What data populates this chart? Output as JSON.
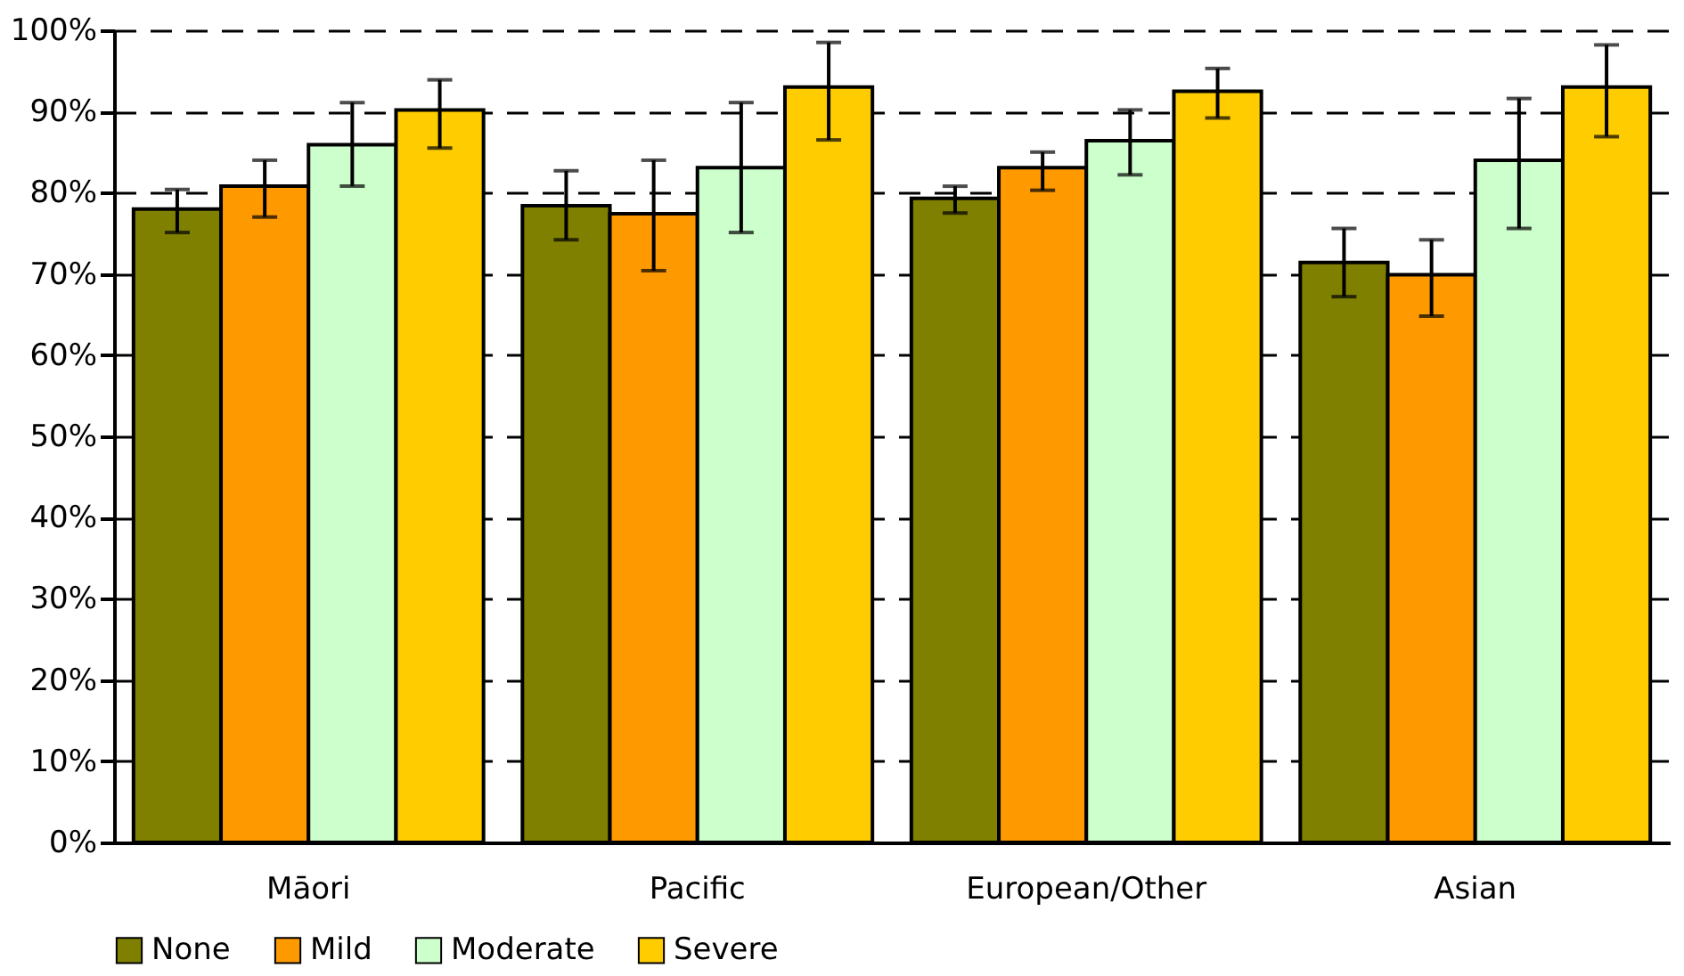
{
  "chart_data": {
    "type": "bar",
    "categories": [
      "Māori",
      "Pacific",
      "European/Other",
      "Asian"
    ],
    "series": [
      {
        "name": "None",
        "color": "#808000",
        "values": [
          78.0,
          78.4,
          79.3,
          71.4
        ],
        "errors": [
          [
            75.1,
            80.4
          ],
          [
            74.2,
            82.7
          ],
          [
            77.5,
            80.8
          ],
          [
            67.2,
            75.6
          ]
        ]
      },
      {
        "name": "Mild",
        "color": "#ff9900",
        "values": [
          80.8,
          77.4,
          83.1,
          69.9
        ],
        "errors": [
          [
            77.0,
            84.0
          ],
          [
            70.4,
            84.0
          ],
          [
            80.3,
            85.0
          ],
          [
            64.8,
            74.2
          ]
        ]
      },
      {
        "name": "Moderate",
        "color": "#ccffcc",
        "values": [
          85.9,
          83.1,
          86.4,
          84.0
        ],
        "errors": [
          [
            80.8,
            91.1
          ],
          [
            75.1,
            91.1
          ],
          [
            82.2,
            90.2
          ],
          [
            75.6,
            91.6
          ]
        ]
      },
      {
        "name": "Severe",
        "color": "#ffcc00",
        "values": [
          90.2,
          93.0,
          92.5,
          93.0
        ],
        "errors": [
          [
            85.5,
            93.9
          ],
          [
            86.5,
            98.5
          ],
          [
            89.2,
            95.3
          ],
          [
            86.9,
            98.2
          ]
        ]
      }
    ],
    "ylim": [
      0,
      100
    ],
    "yticks": [
      {
        "value": 0,
        "label": "0%"
      },
      {
        "value": 10,
        "label": "10%"
      },
      {
        "value": 20,
        "label": "20%"
      },
      {
        "value": 30,
        "label": "30%"
      },
      {
        "value": 40,
        "label": "40%"
      },
      {
        "value": 50,
        "label": "50%"
      },
      {
        "value": 60,
        "label": "60%"
      },
      {
        "value": 70,
        "label": "70%"
      },
      {
        "value": 80,
        "label": "80%"
      },
      {
        "value": 90,
        "label": "90%"
      },
      {
        "value": 100,
        "label": "100%"
      }
    ],
    "grid": "y",
    "legend": "bottom"
  }
}
